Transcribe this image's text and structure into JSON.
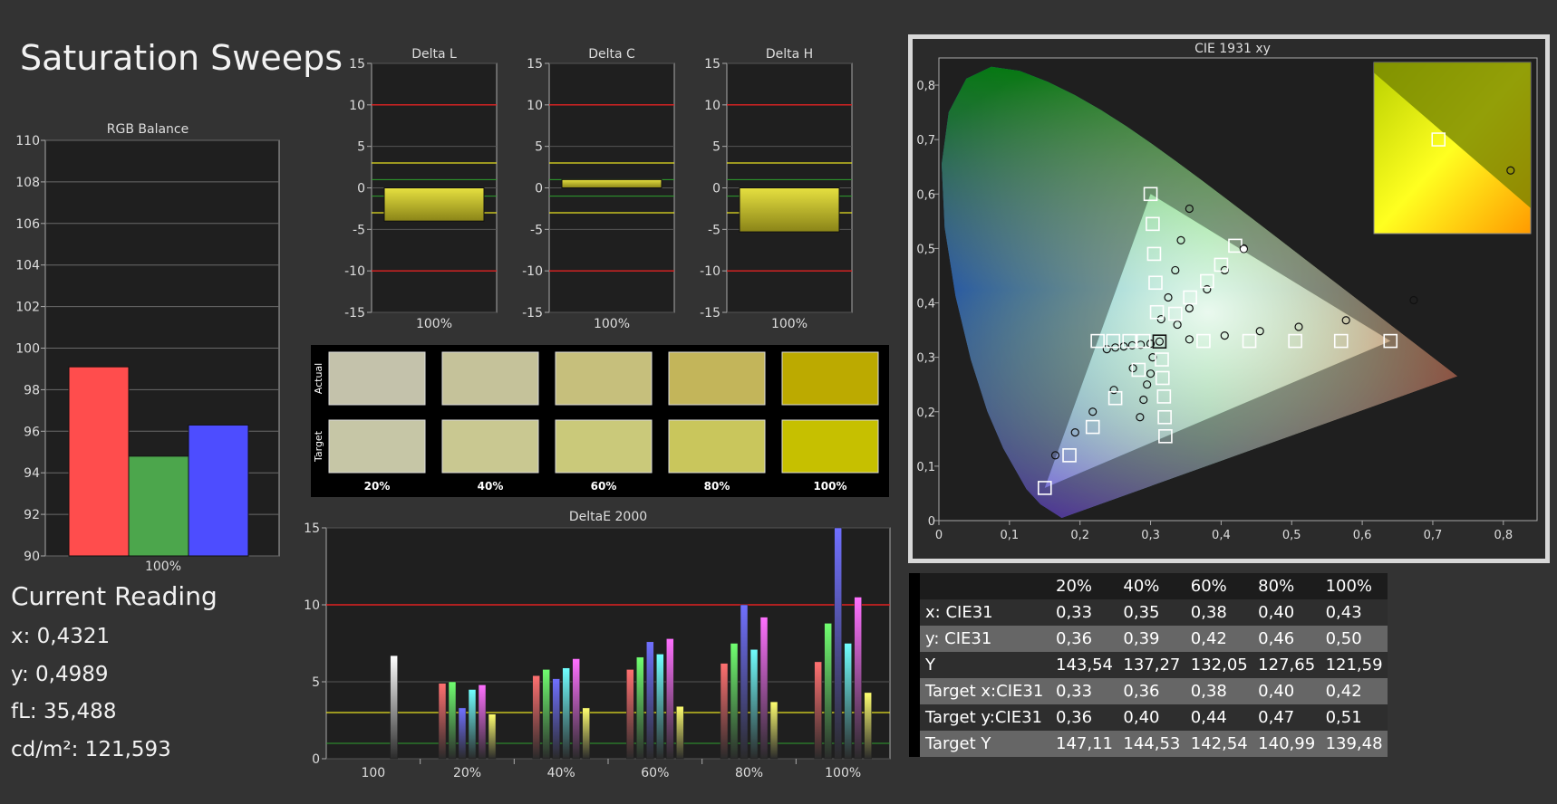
{
  "page_title": "Saturation Sweeps",
  "current_reading": {
    "heading": "Current Reading",
    "x": "x: 0,4321",
    "y": "y: 0,4989",
    "fl": "fL: 35,488",
    "cdm2": "cd/m²: 121,593"
  },
  "colors": {
    "background": "#333333",
    "panel": "#1f1f1f",
    "red_line": "#e02020",
    "yellow_line": "#e8e020",
    "green_line": "#2fa02f",
    "bar_fill": "#c8c030"
  },
  "chart_data": [
    {
      "type": "bar",
      "title": "RGB Balance",
      "categories": [
        "100%"
      ],
      "series": [
        {
          "color": "#ff4d4d",
          "values": [
            99.1
          ]
        },
        {
          "color": "#4ca64c",
          "values": [
            94.8
          ]
        },
        {
          "color": "#4d4dff",
          "values": [
            96.3
          ]
        }
      ],
      "ylim": [
        90,
        110
      ],
      "yticks": [
        "90",
        "92",
        "94",
        "96",
        "98",
        "100",
        "102",
        "104",
        "106",
        "108",
        "110"
      ],
      "grid": true
    },
    {
      "type": "bar",
      "title": "Delta L",
      "categories": [
        "100%"
      ],
      "values": [
        -4.0
      ],
      "ylim": [
        -15,
        15
      ],
      "yticks": [
        "-15",
        "-10",
        "-5",
        "0",
        "5",
        "10",
        "15"
      ],
      "thresholds": {
        "red": [
          10,
          -10
        ],
        "yellow": [
          3,
          -3
        ],
        "green": [
          1,
          -1
        ]
      }
    },
    {
      "type": "bar",
      "title": "Delta C",
      "categories": [
        "100%"
      ],
      "values": [
        1.0
      ],
      "ylim": [
        -15,
        15
      ],
      "yticks": [
        "-15",
        "-10",
        "-5",
        "0",
        "5",
        "10",
        "15"
      ],
      "thresholds": {
        "red": [
          10,
          -10
        ],
        "yellow": [
          3,
          -3
        ],
        "green": [
          1,
          -1
        ]
      }
    },
    {
      "type": "bar",
      "title": "Delta H",
      "categories": [
        "100%"
      ],
      "values": [
        -5.3
      ],
      "ylim": [
        -15,
        15
      ],
      "yticks": [
        "-15",
        "-10",
        "-5",
        "0",
        "5",
        "10",
        "15"
      ],
      "thresholds": {
        "red": [
          10,
          -10
        ],
        "yellow": [
          3,
          -3
        ],
        "green": [
          1,
          -1
        ]
      }
    },
    {
      "type": "bar",
      "title": "DeltaE 2000",
      "categories": [
        "100",
        "20%",
        "40%",
        "60%",
        "80%",
        "100%"
      ],
      "series": [
        {
          "color": "#ff7070",
          "values": [
            null,
            4.9,
            5.4,
            5.8,
            6.2,
            6.3
          ]
        },
        {
          "color": "#70ff70",
          "values": [
            null,
            5.0,
            5.8,
            6.6,
            7.5,
            8.8
          ]
        },
        {
          "color": "#7070ff",
          "values": [
            null,
            3.3,
            5.2,
            7.6,
            10.0,
            15.0
          ]
        },
        {
          "color": "#70ffff",
          "values": [
            null,
            4.5,
            5.9,
            6.8,
            7.1,
            7.5
          ]
        },
        {
          "color": "#ff70ff",
          "values": [
            null,
            4.8,
            6.5,
            7.8,
            9.2,
            10.5
          ]
        },
        {
          "color": "#ffff70",
          "values": [
            null,
            2.9,
            3.3,
            3.4,
            3.7,
            4.3
          ]
        },
        {
          "color": "#ffffff",
          "values": [
            6.7,
            null,
            null,
            null,
            null,
            null
          ]
        }
      ],
      "ylim": [
        0,
        15
      ],
      "yticks": [
        "0",
        "5",
        "10",
        "15"
      ],
      "thresholds": {
        "red": [
          10
        ],
        "yellow": [
          3
        ],
        "green": [
          1
        ]
      }
    },
    {
      "type": "scatter",
      "title": "CIE 1931 xy",
      "xlim": [
        0,
        0.85
      ],
      "ylim": [
        0,
        0.85
      ],
      "xticks": [
        "0",
        "0,1",
        "0,2",
        "0,3",
        "0,4",
        "0,5",
        "0,6",
        "0,7",
        "0,8"
      ],
      "yticks": [
        "0",
        "0,1",
        "0,2",
        "0,3",
        "0,4",
        "0,5",
        "0,6",
        "0,7",
        "0,8"
      ],
      "gamut_triangle": [
        [
          0.64,
          0.33
        ],
        [
          0.3,
          0.6
        ],
        [
          0.15,
          0.06
        ]
      ],
      "target_points": [
        [
          0.3127,
          0.329
        ],
        [
          0.64,
          0.33
        ],
        [
          0.57,
          0.33
        ],
        [
          0.505,
          0.33
        ],
        [
          0.44,
          0.33
        ],
        [
          0.375,
          0.33
        ],
        [
          0.3,
          0.6
        ],
        [
          0.303,
          0.545
        ],
        [
          0.305,
          0.49
        ],
        [
          0.307,
          0.437
        ],
        [
          0.309,
          0.383
        ],
        [
          0.15,
          0.06
        ],
        [
          0.185,
          0.12
        ],
        [
          0.218,
          0.172
        ],
        [
          0.25,
          0.225
        ],
        [
          0.283,
          0.277
        ],
        [
          0.225,
          0.33
        ],
        [
          0.247,
          0.33
        ],
        [
          0.27,
          0.33
        ],
        [
          0.29,
          0.33
        ],
        [
          0.42,
          0.505
        ],
        [
          0.4,
          0.47
        ],
        [
          0.38,
          0.44
        ],
        [
          0.356,
          0.41
        ],
        [
          0.335,
          0.38
        ],
        [
          0.321,
          0.155
        ],
        [
          0.32,
          0.19
        ],
        [
          0.319,
          0.228
        ],
        [
          0.317,
          0.262
        ],
        [
          0.316,
          0.296
        ]
      ],
      "measured_points": [
        [
          0.3127,
          0.329
        ],
        [
          0.673,
          0.405
        ],
        [
          0.577,
          0.368
        ],
        [
          0.51,
          0.356
        ],
        [
          0.455,
          0.348
        ],
        [
          0.405,
          0.34
        ],
        [
          0.355,
          0.333
        ],
        [
          0.355,
          0.573
        ],
        [
          0.343,
          0.515
        ],
        [
          0.335,
          0.46
        ],
        [
          0.325,
          0.41
        ],
        [
          0.315,
          0.37
        ],
        [
          0.165,
          0.12
        ],
        [
          0.193,
          0.162
        ],
        [
          0.218,
          0.2
        ],
        [
          0.248,
          0.24
        ],
        [
          0.275,
          0.28
        ],
        [
          0.238,
          0.315
        ],
        [
          0.25,
          0.318
        ],
        [
          0.262,
          0.32
        ],
        [
          0.274,
          0.322
        ],
        [
          0.286,
          0.323
        ],
        [
          0.3,
          0.325
        ],
        [
          0.432,
          0.5
        ],
        [
          0.405,
          0.46
        ],
        [
          0.38,
          0.425
        ],
        [
          0.355,
          0.39
        ],
        [
          0.338,
          0.36
        ],
        [
          0.285,
          0.19
        ],
        [
          0.29,
          0.222
        ],
        [
          0.295,
          0.25
        ],
        [
          0.3,
          0.27
        ],
        [
          0.303,
          0.3
        ]
      ],
      "current_point": [
        0.4321,
        0.4989
      ],
      "inset_points": {
        "target": [
          0.42,
          0.505
        ],
        "measured": [
          0.4321,
          0.4989
        ]
      }
    }
  ],
  "swatches": {
    "row_labels": [
      "Actual",
      "Target"
    ],
    "columns": [
      "20%",
      "40%",
      "60%",
      "80%",
      "100%"
    ],
    "actual_colors": [
      "#c4c2ab",
      "#c5c29a",
      "#c6bf7c",
      "#c3b55a",
      "#bcaa00"
    ],
    "target_colors": [
      "#c6c6a6",
      "#c9c891",
      "#cac97a",
      "#c9c65c",
      "#c6c000"
    ]
  },
  "table": {
    "headers": [
      "20%",
      "40%",
      "60%",
      "80%",
      "100%"
    ],
    "rows": [
      {
        "label": "x: CIE31",
        "values": [
          "0,33",
          "0,35",
          "0,38",
          "0,40",
          "0,43"
        ]
      },
      {
        "label": "y: CIE31",
        "values": [
          "0,36",
          "0,39",
          "0,42",
          "0,46",
          "0,50"
        ]
      },
      {
        "label": "Y",
        "values": [
          "143,54",
          "137,27",
          "132,05",
          "127,65",
          "121,59"
        ]
      },
      {
        "label": "Target x:CIE31",
        "values": [
          "0,33",
          "0,36",
          "0,38",
          "0,40",
          "0,42"
        ]
      },
      {
        "label": "Target y:CIE31",
        "values": [
          "0,36",
          "0,40",
          "0,44",
          "0,47",
          "0,51"
        ]
      },
      {
        "label": "Target Y",
        "values": [
          "147,11",
          "144,53",
          "142,54",
          "140,99",
          "139,48"
        ]
      }
    ]
  }
}
